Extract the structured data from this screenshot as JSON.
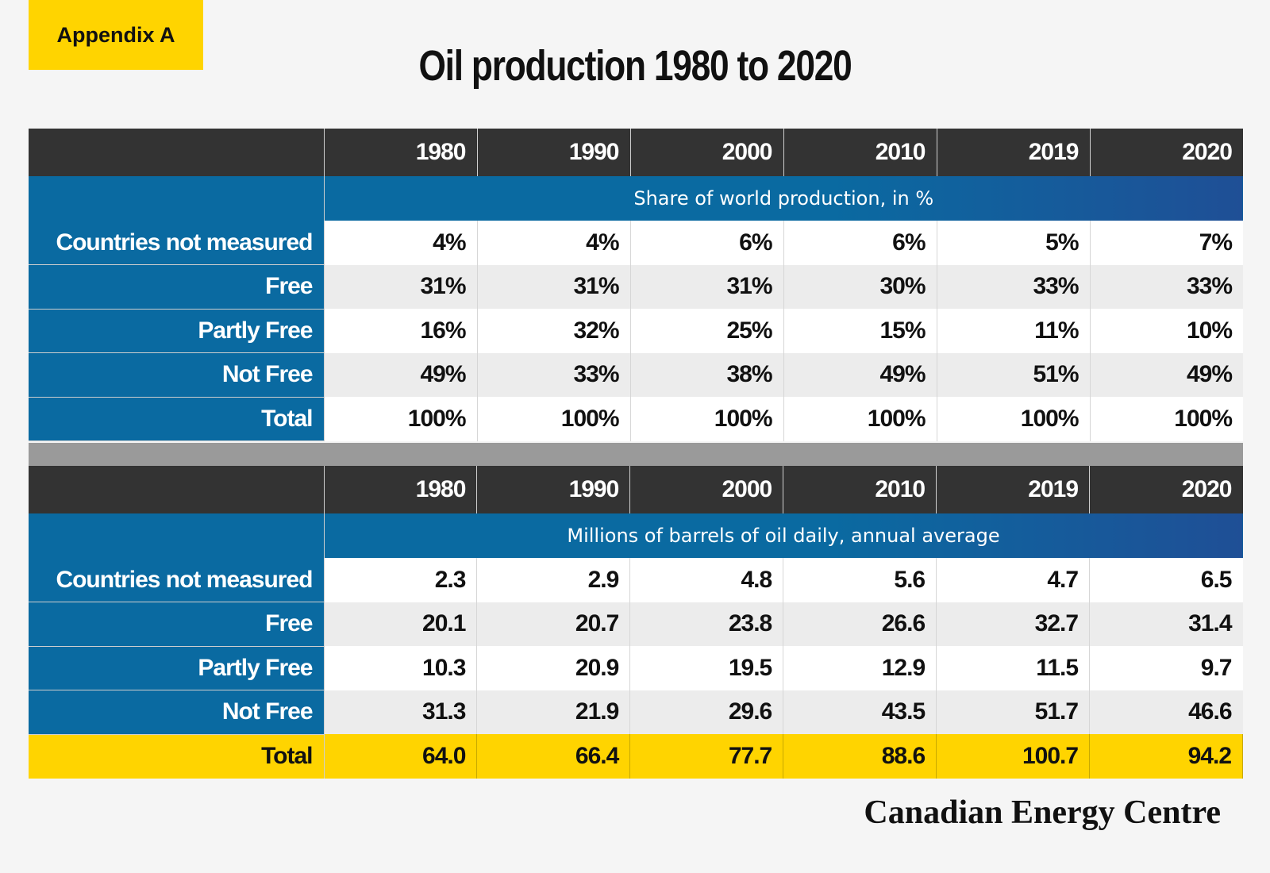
{
  "badge": "Appendix A",
  "title": "Oil production 1980 to 2020",
  "logo": "Canadian Energy Centre",
  "chart_data": [
    {
      "type": "table",
      "years": [
        "1980",
        "1990",
        "2000",
        "2010",
        "2019",
        "2020"
      ],
      "subtitle": "Share of world production, in %",
      "rows": [
        {
          "label": "Countries not measured",
          "values": [
            "4%",
            "4%",
            "6%",
            "6%",
            "5%",
            "7%"
          ]
        },
        {
          "label": "Free",
          "values": [
            "31%",
            "31%",
            "31%",
            "30%",
            "33%",
            "33%"
          ]
        },
        {
          "label": "Partly Free",
          "values": [
            "16%",
            "32%",
            "25%",
            "15%",
            "11%",
            "10%"
          ]
        },
        {
          "label": "Not Free",
          "values": [
            "49%",
            "33%",
            "38%",
            "49%",
            "51%",
            "49%"
          ]
        },
        {
          "label": "Total",
          "values": [
            "100%",
            "100%",
            "100%",
            "100%",
            "100%",
            "100%"
          ]
        }
      ]
    },
    {
      "type": "table",
      "years": [
        "1980",
        "1990",
        "2000",
        "2010",
        "2019",
        "2020"
      ],
      "subtitle": "Millions of barrels of oil daily, annual average",
      "rows": [
        {
          "label": "Countries not measured",
          "values": [
            "2.3",
            "2.9",
            "4.8",
            "5.6",
            "4.7",
            "6.5"
          ]
        },
        {
          "label": "Free",
          "values": [
            "20.1",
            "20.7",
            "23.8",
            "26.6",
            "32.7",
            "31.4"
          ]
        },
        {
          "label": "Partly Free",
          "values": [
            "10.3",
            "20.9",
            "19.5",
            "12.9",
            "11.5",
            "9.7"
          ]
        },
        {
          "label": "Not Free",
          "values": [
            "31.3",
            "21.9",
            "29.6",
            "43.5",
            "51.7",
            "46.6"
          ]
        },
        {
          "label": "Total",
          "values": [
            "64.0",
            "66.4",
            "77.7",
            "88.6",
            "100.7",
            "94.2"
          ]
        }
      ]
    }
  ]
}
